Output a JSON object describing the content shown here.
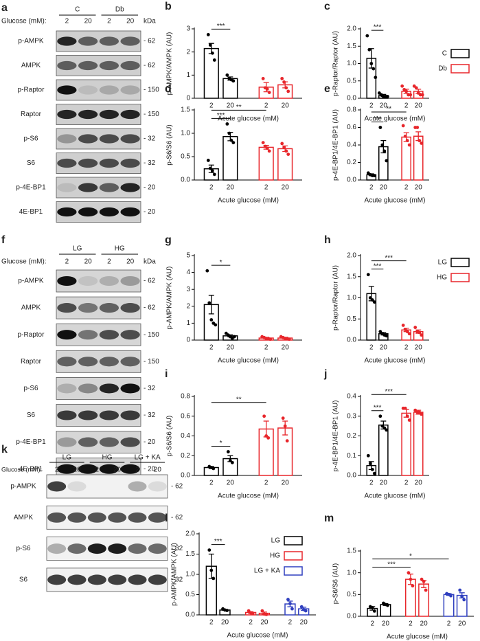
{
  "blots": [
    {
      "letter": "a",
      "glucose_label": "Glucose (mM):",
      "groups": [
        "C",
        "Db"
      ],
      "lanes": [
        "2",
        "20",
        "2",
        "20"
      ],
      "kda_label": "kDa",
      "rows": [
        {
          "name": "p-AMPK",
          "kda": "- 62"
        },
        {
          "name": "AMPK",
          "kda": "- 62"
        },
        {
          "name": "p-Raptor",
          "kda": "- 150"
        },
        {
          "name": "Raptor",
          "kda": "- 150"
        },
        {
          "name": "p-S6",
          "kda": "- 32"
        },
        {
          "name": "S6",
          "kda": "- 32"
        },
        {
          "name": "p-4E-BP1",
          "kda": "- 20"
        },
        {
          "name": "4E-BP1",
          "kda": "- 20"
        }
      ]
    },
    {
      "letter": "f",
      "glucose_label": "Glucose (mM):",
      "groups": [
        "LG",
        "HG"
      ],
      "lanes": [
        "2",
        "20",
        "2",
        "20"
      ],
      "kda_label": "kDa",
      "rows": [
        {
          "name": "p-AMPK",
          "kda": "- 62"
        },
        {
          "name": "AMPK",
          "kda": "- 62"
        },
        {
          "name": "p-Raptor",
          "kda": "- 150"
        },
        {
          "name": "Raptor",
          "kda": "- 150"
        },
        {
          "name": "p-S6",
          "kda": "- 32"
        },
        {
          "name": "S6",
          "kda": "- 32"
        },
        {
          "name": "p-4E-BP1",
          "kda": "- 20"
        },
        {
          "name": "4E-BP1",
          "kda": "- 20"
        }
      ]
    },
    {
      "letter": "k",
      "glucose_label": "Glucose (mM):",
      "groups": [
        "LG",
        "HG",
        "LG + KA"
      ],
      "lanes": [
        "2",
        "20",
        "2",
        "20",
        "2",
        "20"
      ],
      "rows": [
        {
          "name": "p-AMPK",
          "kda": "- 62"
        },
        {
          "name": "AMPK",
          "kda": "- 62"
        },
        {
          "name": "p-S6",
          "kda": "- 32"
        },
        {
          "name": "S6",
          "kda": "- 32"
        }
      ]
    }
  ],
  "chart_data": [
    {
      "letter": "b",
      "type": "bar",
      "ylabel": "p-AMPK/AMPK (AU)",
      "xlabel": "Acute glucose (mM)",
      "ylim": [
        0,
        3
      ],
      "yticks": [
        0,
        1,
        2,
        3
      ],
      "series": [
        {
          "color": "#000000",
          "categories": [
            "2",
            "20"
          ],
          "values": [
            2.15,
            0.85
          ],
          "errors": [
            0.22,
            0.07
          ],
          "points": [
            [
              2.75,
              2.3,
              1.95,
              1.65
            ],
            [
              1.0,
              0.85,
              0.8,
              0.75
            ]
          ]
        },
        {
          "color": "#e8262b",
          "categories": [
            "2",
            "20"
          ],
          "values": [
            0.48,
            0.58
          ],
          "errors": [
            0.2,
            0.13
          ],
          "points": [
            [
              0.85,
              0.45,
              0.4,
              0.25
            ],
            [
              0.85,
              0.7,
              0.45,
              0.3
            ]
          ]
        }
      ],
      "annotations": [
        {
          "text": "***",
          "between": [
            0,
            1
          ]
        }
      ]
    },
    {
      "letter": "c",
      "type": "bar",
      "ylabel": "p-Raptor/Raptor (AU)",
      "xlabel": "Acute glucose (mM)",
      "ylim": [
        0,
        2
      ],
      "yticks": [
        {
          "value": 0,
          "label": "0.0"
        },
        0.5,
        {
          "value": 1,
          "label": "1.0"
        },
        1.5,
        {
          "value": 2,
          "label": "2.0"
        }
      ],
      "legend": true,
      "series": [
        {
          "name": "C",
          "color": "#000000",
          "categories": [
            "2",
            "20"
          ],
          "values": [
            1.15,
            0.08
          ],
          "errors": [
            0.28,
            0.03
          ],
          "points": [
            [
              1.8,
              1.4,
              1.0,
              0.85,
              0.6
            ],
            [
              0.15,
              0.1,
              0.05,
              0.05,
              0.05
            ]
          ]
        },
        {
          "name": "Db",
          "color": "#e8262b",
          "categories": [
            "2",
            "20"
          ],
          "values": [
            0.2,
            0.2
          ],
          "errors": [
            0.06,
            0.06
          ],
          "points": [
            [
              0.35,
              0.25,
              0.2,
              0.1,
              0.1
            ],
            [
              0.35,
              0.3,
              0.15,
              0.1,
              0.1
            ]
          ]
        }
      ],
      "annotations": [
        {
          "text": "***",
          "between": [
            0,
            1
          ]
        }
      ]
    },
    {
      "letter": "d",
      "type": "bar",
      "ylabel": "p-S6/S6 (AU)",
      "xlabel": "Acute glucose (mM)",
      "ylim": [
        0,
        1.5
      ],
      "yticks": [
        {
          "value": 0,
          "label": "0.0"
        },
        0.5,
        {
          "value": 1,
          "label": "1.0"
        },
        1.5
      ],
      "series": [
        {
          "color": "#000000",
          "categories": [
            "2",
            "20"
          ],
          "values": [
            0.24,
            0.93
          ],
          "errors": [
            0.08,
            0.09
          ],
          "points": [
            [
              0.42,
              0.25,
              0.2,
              0.12
            ],
            [
              1.2,
              1.0,
              0.85,
              0.8
            ]
          ]
        },
        {
          "color": "#e8262b",
          "categories": [
            "2",
            "20"
          ],
          "values": [
            0.7,
            0.67
          ],
          "errors": [
            0.04,
            0.06
          ],
          "points": [
            [
              0.8,
              0.72,
              0.68,
              0.62
            ],
            [
              0.78,
              0.7,
              0.62,
              0.55
            ]
          ]
        }
      ],
      "annotations": [
        {
          "text": "***",
          "between": [
            0,
            1
          ]
        },
        {
          "text": "**",
          "between": [
            0,
            2
          ]
        }
      ]
    },
    {
      "letter": "e",
      "type": "bar",
      "ylabel": "p-4E-BP1/4E-BP1 (AU)",
      "xlabel": "Acute glucose (mM)",
      "ylim": [
        0,
        0.8
      ],
      "yticks": [
        {
          "value": 0,
          "label": "0.0"
        },
        0.2,
        0.4,
        0.6,
        0.8
      ],
      "series": [
        {
          "color": "#000000",
          "categories": [
            "2",
            "20"
          ],
          "values": [
            0.06,
            0.38
          ],
          "errors": [
            0.01,
            0.07
          ],
          "points": [
            [
              0.08,
              0.06,
              0.05,
              0.05
            ],
            [
              0.6,
              0.4,
              0.33,
              0.22
            ]
          ]
        },
        {
          "color": "#e8262b",
          "categories": [
            "2",
            "20"
          ],
          "values": [
            0.49,
            0.5
          ],
          "errors": [
            0.05,
            0.05
          ],
          "points": [
            [
              0.62,
              0.5,
              0.45,
              0.4
            ],
            [
              0.6,
              0.6,
              0.45,
              0.42
            ]
          ]
        }
      ],
      "annotations": [
        {
          "text": "***",
          "between": [
            0,
            1
          ]
        },
        {
          "text": "**",
          "between": [
            0,
            2
          ]
        }
      ]
    },
    {
      "letter": "g",
      "type": "bar",
      "ylabel": "p-AMPK/AMPK (AU)",
      "xlabel": "Acute glucose (mM)",
      "ylim": [
        0,
        5
      ],
      "yticks": [
        0,
        1,
        2,
        3,
        4,
        5
      ],
      "series": [
        {
          "color": "#000000",
          "categories": [
            "2",
            "20"
          ],
          "values": [
            2.1,
            0.25
          ],
          "errors": [
            0.55,
            0.06
          ],
          "points": [
            [
              4.1,
              2.2,
              1.2,
              1.0,
              0.9
            ],
            [
              0.4,
              0.3,
              0.2,
              0.1,
              0.2
            ]
          ]
        },
        {
          "color": "#e8262b",
          "categories": [
            "2",
            "20"
          ],
          "values": [
            0.12,
            0.12
          ],
          "errors": [
            0.03,
            0.03
          ],
          "points": [
            [
              0.2,
              0.15,
              0.1,
              0.1,
              0.05
            ],
            [
              0.2,
              0.15,
              0.1,
              0.1,
              0.05
            ]
          ]
        }
      ],
      "annotations": [
        {
          "text": "*",
          "between": [
            0,
            1
          ]
        }
      ]
    },
    {
      "letter": "h",
      "type": "bar",
      "ylabel": "p-Raptor/Raptor (AU)",
      "xlabel": "Acute glucose (mM)",
      "ylim": [
        0,
        2
      ],
      "yticks": [
        {
          "value": 0,
          "label": "0.0"
        },
        0.5,
        {
          "value": 1,
          "label": "1.0"
        },
        1.5,
        {
          "value": 2,
          "label": "2.0"
        }
      ],
      "legend": true,
      "series": [
        {
          "name": "LG",
          "color": "#000000",
          "categories": [
            "2",
            "20"
          ],
          "values": [
            1.1,
            0.15
          ],
          "errors": [
            0.17,
            0.03
          ],
          "points": [
            [
              1.55,
              1.0,
              0.95,
              0.9
            ],
            [
              0.2,
              0.15,
              0.12,
              0.1
            ]
          ]
        },
        {
          "name": "HG",
          "color": "#e8262b",
          "categories": [
            "2",
            "20"
          ],
          "values": [
            0.24,
            0.2
          ],
          "errors": [
            0.04,
            0.04
          ],
          "points": [
            [
              0.35,
              0.25,
              0.2,
              0.15
            ],
            [
              0.3,
              0.2,
              0.18,
              0.12
            ]
          ]
        }
      ],
      "annotations": [
        {
          "text": "***",
          "between": [
            0,
            1
          ]
        },
        {
          "text": "***",
          "between": [
            0,
            2
          ]
        }
      ]
    },
    {
      "letter": "i",
      "type": "bar",
      "ylabel": "p-S6/S6 (AU)",
      "xlabel": "Acute glucose (mM)",
      "ylim": [
        0,
        0.8
      ],
      "yticks": [
        {
          "value": 0,
          "label": "0.0"
        },
        0.2,
        0.4,
        0.6,
        0.8
      ],
      "series": [
        {
          "color": "#000000",
          "categories": [
            "2",
            "20"
          ],
          "values": [
            0.08,
            0.17
          ],
          "errors": [
            0.01,
            0.03
          ],
          "points": [
            [
              0.09,
              0.08,
              0.07
            ],
            [
              0.24,
              0.15,
              0.13
            ]
          ]
        },
        {
          "color": "#e8262b",
          "categories": [
            "2",
            "20"
          ],
          "values": [
            0.47,
            0.48
          ],
          "errors": [
            0.08,
            0.07
          ],
          "points": [
            [
              0.6,
              0.4,
              0.38
            ],
            [
              0.58,
              0.5,
              0.35
            ]
          ]
        }
      ],
      "annotations": [
        {
          "text": "*",
          "between": [
            0,
            1
          ]
        },
        {
          "text": "**",
          "between": [
            0,
            2
          ]
        }
      ]
    },
    {
      "letter": "j",
      "type": "bar",
      "ylabel": "p-4E-BP1/4E-BP1 (AU)",
      "xlabel": "Acute glucose (mM)",
      "ylim": [
        0,
        0.4
      ],
      "yticks": [
        {
          "value": 0,
          "label": "0.0"
        },
        0.1,
        0.2,
        0.3,
        0.4
      ],
      "series": [
        {
          "color": "#000000",
          "categories": [
            "2",
            "20"
          ],
          "values": [
            0.05,
            0.255
          ],
          "errors": [
            0.02,
            0.02
          ],
          "points": [
            [
              0.1,
              0.06,
              0.03,
              0.01
            ],
            [
              0.3,
              0.25,
              0.24,
              0.23
            ]
          ]
        },
        {
          "color": "#e8262b",
          "categories": [
            "2",
            "20"
          ],
          "values": [
            0.315,
            0.32
          ],
          "errors": [
            0.02,
            0.01
          ],
          "points": [
            [
              0.34,
              0.34,
              0.3,
              0.28
            ],
            [
              0.33,
              0.32,
              0.32,
              0.31
            ]
          ]
        }
      ],
      "annotations": [
        {
          "text": "***",
          "between": [
            0,
            1
          ]
        },
        {
          "text": "***",
          "between": [
            0,
            2
          ]
        }
      ]
    },
    {
      "letter": "l",
      "type": "bar",
      "ylabel": "p-AMPK/AMPK (AU)",
      "xlabel": "Acute glucose (mM)",
      "ylim": [
        0,
        2
      ],
      "yticks": [
        {
          "value": 0,
          "label": "0.0"
        },
        0.5,
        {
          "value": 1,
          "label": "1.0"
        },
        1.5,
        {
          "value": 2,
          "label": "2.0"
        }
      ],
      "legend": true,
      "series": [
        {
          "name": "LG",
          "color": "#000000",
          "categories": [
            "2",
            "20"
          ],
          "values": [
            1.2,
            0.12
          ],
          "errors": [
            0.3,
            0.01
          ],
          "points": [
            [
              1.6,
              1.1,
              0.9
            ],
            [
              0.15,
              0.12,
              0.11
            ]
          ]
        },
        {
          "name": "HG",
          "color": "#e8262b",
          "categories": [
            "2",
            "20"
          ],
          "values": [
            0.06,
            0.04
          ],
          "errors": [
            0.02,
            0.03
          ],
          "points": [
            [
              0.1,
              0.05,
              0.03
            ],
            [
              0.1,
              0.02,
              0.01
            ]
          ]
        },
        {
          "name": "LG + KA",
          "color": "#2f3fbf",
          "categories": [
            "2",
            "20"
          ],
          "values": [
            0.27,
            0.15
          ],
          "errors": [
            0.07,
            0.04
          ],
          "points": [
            [
              0.38,
              0.28,
              0.15
            ],
            [
              0.2,
              0.13,
              0.1
            ]
          ]
        }
      ],
      "annotations": [
        {
          "text": "***",
          "between": [
            0,
            1
          ]
        }
      ]
    },
    {
      "letter": "m",
      "type": "bar",
      "ylabel": "p-S6/S6 (AU)",
      "xlabel": "Acute glucose (mM)",
      "ylim": [
        0,
        1.5
      ],
      "yticks": [
        {
          "value": 0,
          "label": "0.0"
        },
        0.5,
        {
          "value": 1,
          "label": "1.0"
        },
        1.5
      ],
      "series": [
        {
          "color": "#000000",
          "categories": [
            "2",
            "20"
          ],
          "values": [
            0.18,
            0.27
          ],
          "errors": [
            0.04,
            0.02
          ],
          "points": [
            [
              0.22,
              0.2,
              0.12
            ],
            [
              0.3,
              0.27,
              0.25
            ]
          ]
        },
        {
          "color": "#e8262b",
          "categories": [
            "2",
            "20"
          ],
          "values": [
            0.85,
            0.74
          ],
          "errors": [
            0.12,
            0.08
          ],
          "points": [
            [
              1.0,
              0.85,
              0.7
            ],
            [
              0.85,
              0.8,
              0.6
            ]
          ]
        },
        {
          "color": "#2f3fbf",
          "categories": [
            "2",
            "20"
          ],
          "values": [
            0.5,
            0.48
          ],
          "errors": [
            0.02,
            0.06
          ],
          "points": [
            [
              0.52,
              0.5,
              0.47
            ],
            [
              0.6,
              0.45,
              0.38
            ]
          ]
        }
      ],
      "annotations": [
        {
          "text": "***",
          "between": [
            0,
            2
          ]
        },
        {
          "text": "*",
          "between": [
            0,
            4
          ]
        }
      ]
    }
  ]
}
